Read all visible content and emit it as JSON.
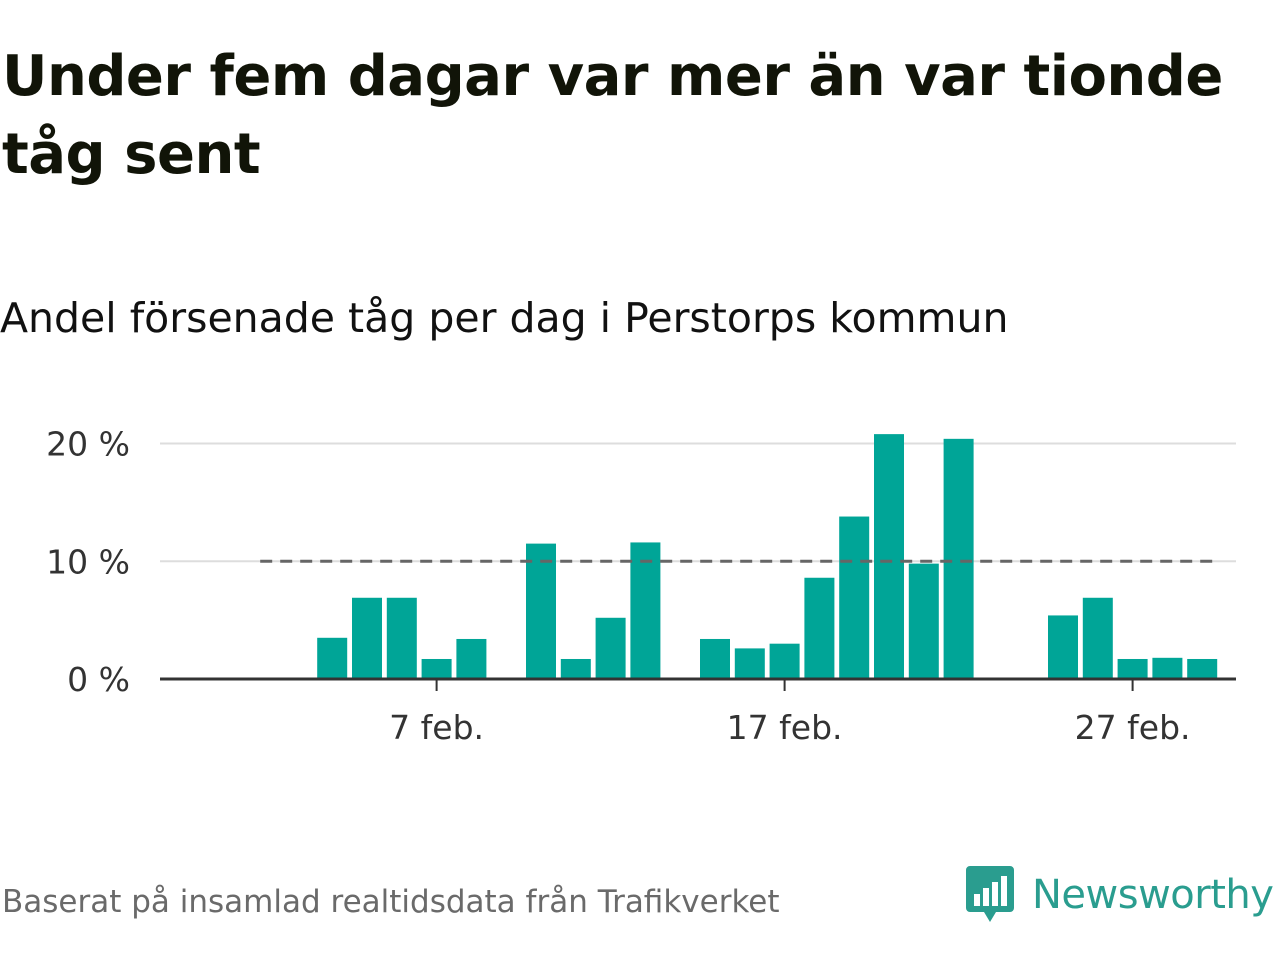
{
  "header": {
    "title": "Under fem dagar var mer än var tionde tåg sent",
    "subtitle": "Andel försenade tåg per dag i Perstorps kommun"
  },
  "footer": {
    "source": "Baserat på insamlad realtidsdata från Trafikverket",
    "brand": "Newsworthy"
  },
  "colors": {
    "bar": "#00a597",
    "reference_line": "#666666",
    "grid": "#dddddd",
    "axis": "#333333",
    "brand": "#2a9d8f"
  },
  "chart_data": {
    "type": "bar",
    "x_unit": "day",
    "x": [
      "2024-02-01",
      "2024-02-02",
      "2024-02-03",
      "2024-02-04",
      "2024-02-05",
      "2024-02-06",
      "2024-02-07",
      "2024-02-08",
      "2024-02-09",
      "2024-02-10",
      "2024-02-11",
      "2024-02-12",
      "2024-02-13",
      "2024-02-14",
      "2024-02-15",
      "2024-02-16",
      "2024-02-17",
      "2024-02-18",
      "2024-02-19",
      "2024-02-20",
      "2024-02-21",
      "2024-02-22",
      "2024-02-23",
      "2024-02-24",
      "2024-02-25",
      "2024-02-26",
      "2024-02-27",
      "2024-02-28",
      "2024-02-29"
    ],
    "values": [
      null,
      null,
      null,
      3.5,
      6.9,
      6.9,
      1.7,
      3.4,
      null,
      11.5,
      1.7,
      5.2,
      11.6,
      null,
      3.4,
      2.6,
      3.0,
      8.6,
      13.8,
      20.8,
      9.8,
      20.4,
      null,
      null,
      5.4,
      6.9,
      1.7,
      1.8,
      1.7
    ],
    "reference_line": {
      "value": 10,
      "style": "dashed"
    },
    "ylim": [
      0,
      22
    ],
    "yticks": [
      0,
      10,
      20
    ],
    "ytick_labels": [
      "0 %",
      "10 %",
      "20 %"
    ],
    "xticks": [
      {
        "date": "2024-02-07",
        "label": "7 feb."
      },
      {
        "date": "2024-02-17",
        "label": "17 feb."
      },
      {
        "date": "2024-02-27",
        "label": "27 feb."
      }
    ],
    "grid": true,
    "legend": false,
    "title": "Under fem dagar var mer än var tionde tåg sent",
    "subtitle": "Andel försenade tåg per dag i Perstorps kommun",
    "xlabel": "",
    "ylabel": ""
  }
}
